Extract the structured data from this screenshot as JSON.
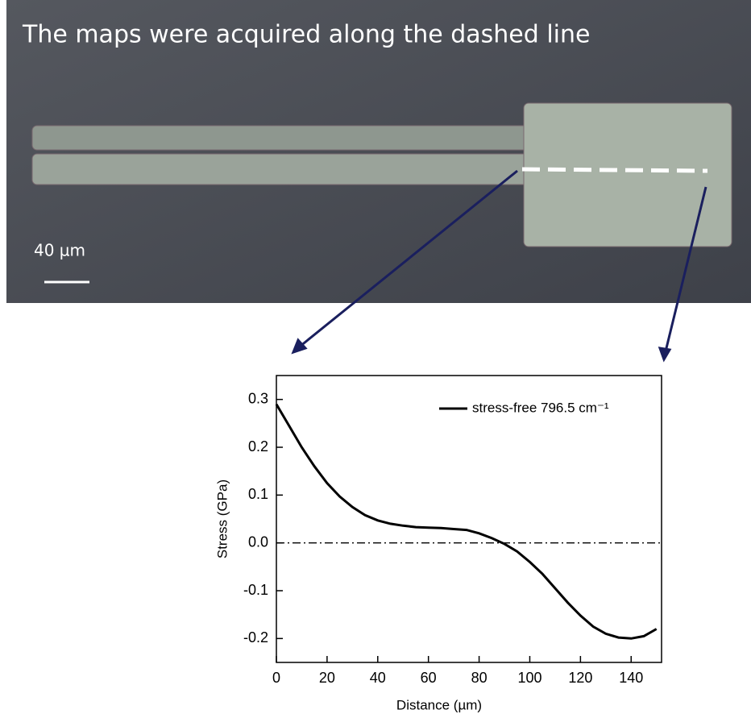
{
  "image": {
    "caption": "The maps were acquired along the dashed line",
    "scale_bar": "40 µm"
  },
  "chart_data": {
    "type": "line",
    "x": [
      0,
      5,
      10,
      15,
      20,
      25,
      30,
      35,
      40,
      45,
      50,
      55,
      60,
      65,
      70,
      75,
      80,
      85,
      90,
      95,
      100,
      105,
      110,
      115,
      120,
      125,
      130,
      135,
      140,
      145,
      150
    ],
    "series": [
      {
        "name": "stress-free 796.5 cm⁻¹",
        "color": "#000000",
        "values": [
          0.29,
          0.245,
          0.2,
          0.16,
          0.125,
          0.097,
          0.075,
          0.058,
          0.047,
          0.04,
          0.036,
          0.033,
          0.032,
          0.031,
          0.029,
          0.027,
          0.02,
          0.01,
          -0.002,
          -0.018,
          -0.04,
          -0.065,
          -0.095,
          -0.125,
          -0.152,
          -0.175,
          -0.19,
          -0.198,
          -0.2,
          -0.195,
          -0.18
        ]
      }
    ],
    "xlabel": "Distance (µm)",
    "ylabel": "Stress (GPa)",
    "xlim": [
      0,
      152
    ],
    "ylim": [
      -0.25,
      0.35
    ],
    "xticks": [
      0,
      20,
      40,
      60,
      80,
      100,
      120,
      140
    ],
    "yticks": [
      -0.2,
      -0.1,
      {
        "value": 0,
        "label": "0.0"
      },
      0.1,
      0.2,
      0.3
    ],
    "hline": 0,
    "legend": "upper right"
  }
}
